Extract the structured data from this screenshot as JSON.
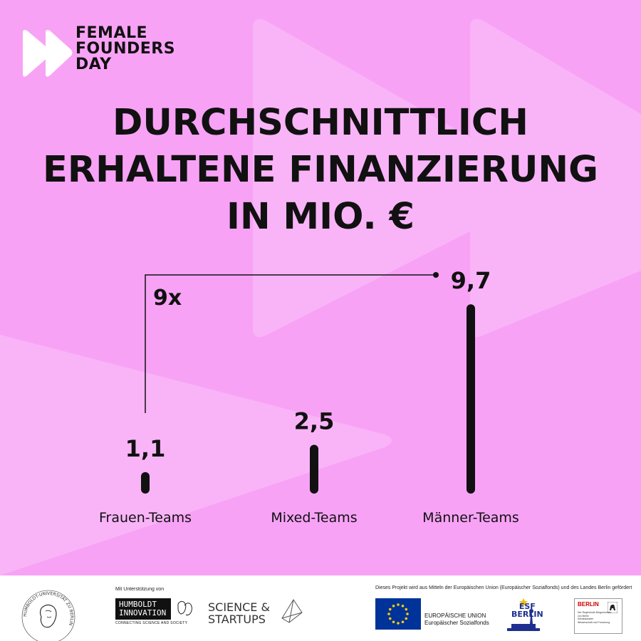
{
  "brand": {
    "logo_lines": [
      "FEMALE",
      "FOUNDERS",
      "DAY"
    ]
  },
  "title_lines": [
    "DURCHSCHNITTLICH",
    "ERHALTENE FINANZIERUNG",
    "IN MIO. €"
  ],
  "colors": {
    "background": "#f8a2f6",
    "background_shape": "#f9b4f8",
    "ink": "#111111",
    "footer": "#ffffff",
    "eu_blue": "#003399",
    "eu_star": "#ffcc00"
  },
  "chart_data": {
    "type": "bar",
    "categories": [
      "Frauen-Teams",
      "Mixed-Teams",
      "Männer-Teams"
    ],
    "values": [
      1.1,
      2.5,
      9.7
    ],
    "value_labels": [
      "1,1",
      "2,5",
      "9,7"
    ],
    "title": "DURCHSCHNITTLICH ERHALTENE FINANZIERUNG IN MIO. €",
    "ylim": [
      0,
      10
    ],
    "grid": false,
    "annotation": {
      "text": "9x",
      "from_category": "Frauen-Teams",
      "to_category": "Männer-Teams"
    }
  },
  "footer": {
    "support_label": "Mit Unterstützung von",
    "hu_seal_text": "HUMBOLDT-UNIVERSITÄT ZU BERLIN",
    "humboldt_innovation": {
      "lines": [
        "HUMBOLDT",
        "INNOVATION"
      ],
      "tagline": "CONNECTING SCIENCE AND SOCIETY"
    },
    "science_startups": {
      "lines": [
        "SCIENCE &",
        "STARTUPS"
      ]
    },
    "project_note": "Dieses Projekt wird aus Mitteln der Europäischen Union (Europäischer Sozialfonds) und des Landes Berlin gefördert",
    "eu": {
      "lines": [
        "EUROPÄISCHE UNION",
        "Europäischer Sozialfonds"
      ]
    },
    "esf": {
      "lines": [
        "ESF",
        "BERLIN"
      ]
    },
    "berlin": {
      "title": "BERLIN",
      "lines": [
        "Der Regierende Bürgermeister",
        "von Berlin",
        "Senatskanzlei",
        "Wissenschaft und Forschung"
      ]
    }
  }
}
